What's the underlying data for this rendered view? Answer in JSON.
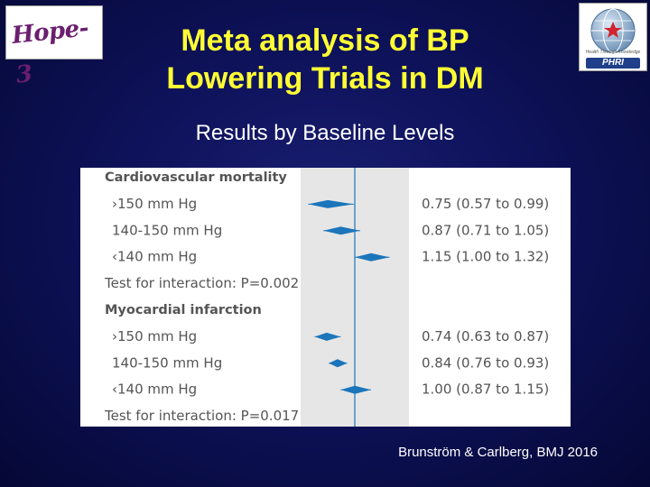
{
  "slide": {
    "title_line1": "Meta analysis of BP",
    "title_line2": "Lowering Trials in DM",
    "subtitle": "Results by Baseline Levels",
    "citation": "Brunström & Carlberg, BMJ 2016"
  },
  "logos": {
    "left_text": "Hope-3",
    "right_text": "PHRI",
    "right_small_text": "Health Through Knowledge"
  },
  "colors": {
    "background": "#0e125a",
    "title": "#ffff33",
    "marker": "#1b75bb",
    "shade": "#e6e6e6",
    "chart_text": "#555555"
  },
  "chart_data": {
    "type": "forest",
    "reference_line": 1.0,
    "groups": [
      {
        "heading": "Cardiovascular mortality",
        "rows": [
          {
            "label": "›150 mm Hg",
            "estimate": 0.75,
            "lower": 0.57,
            "upper": 0.99,
            "text": "0.75 (0.57 to 0.99)"
          },
          {
            "label": "140-150 mm Hg",
            "estimate": 0.87,
            "lower": 0.71,
            "upper": 1.05,
            "text": "0.87 (0.71 to 1.05)"
          },
          {
            "label": "‹140 mm Hg",
            "estimate": 1.15,
            "lower": 1.0,
            "upper": 1.32,
            "text": "1.15 (1.00 to 1.32)"
          }
        ],
        "interaction": "Test for interaction: P=0.002"
      },
      {
        "heading": "Myocardial infarction",
        "rows": [
          {
            "label": "›150 mm Hg",
            "estimate": 0.74,
            "lower": 0.63,
            "upper": 0.87,
            "text": "0.74 (0.63 to 0.87)"
          },
          {
            "label": "140-150 mm Hg",
            "estimate": 0.84,
            "lower": 0.76,
            "upper": 0.93,
            "text": "0.84 (0.76 to 0.93)"
          },
          {
            "label": "‹140 mm Hg",
            "estimate": 1.0,
            "lower": 0.87,
            "upper": 1.15,
            "text": "1.00 (0.87 to 1.15)"
          }
        ],
        "interaction": "Test for interaction: P=0.017"
      }
    ]
  }
}
